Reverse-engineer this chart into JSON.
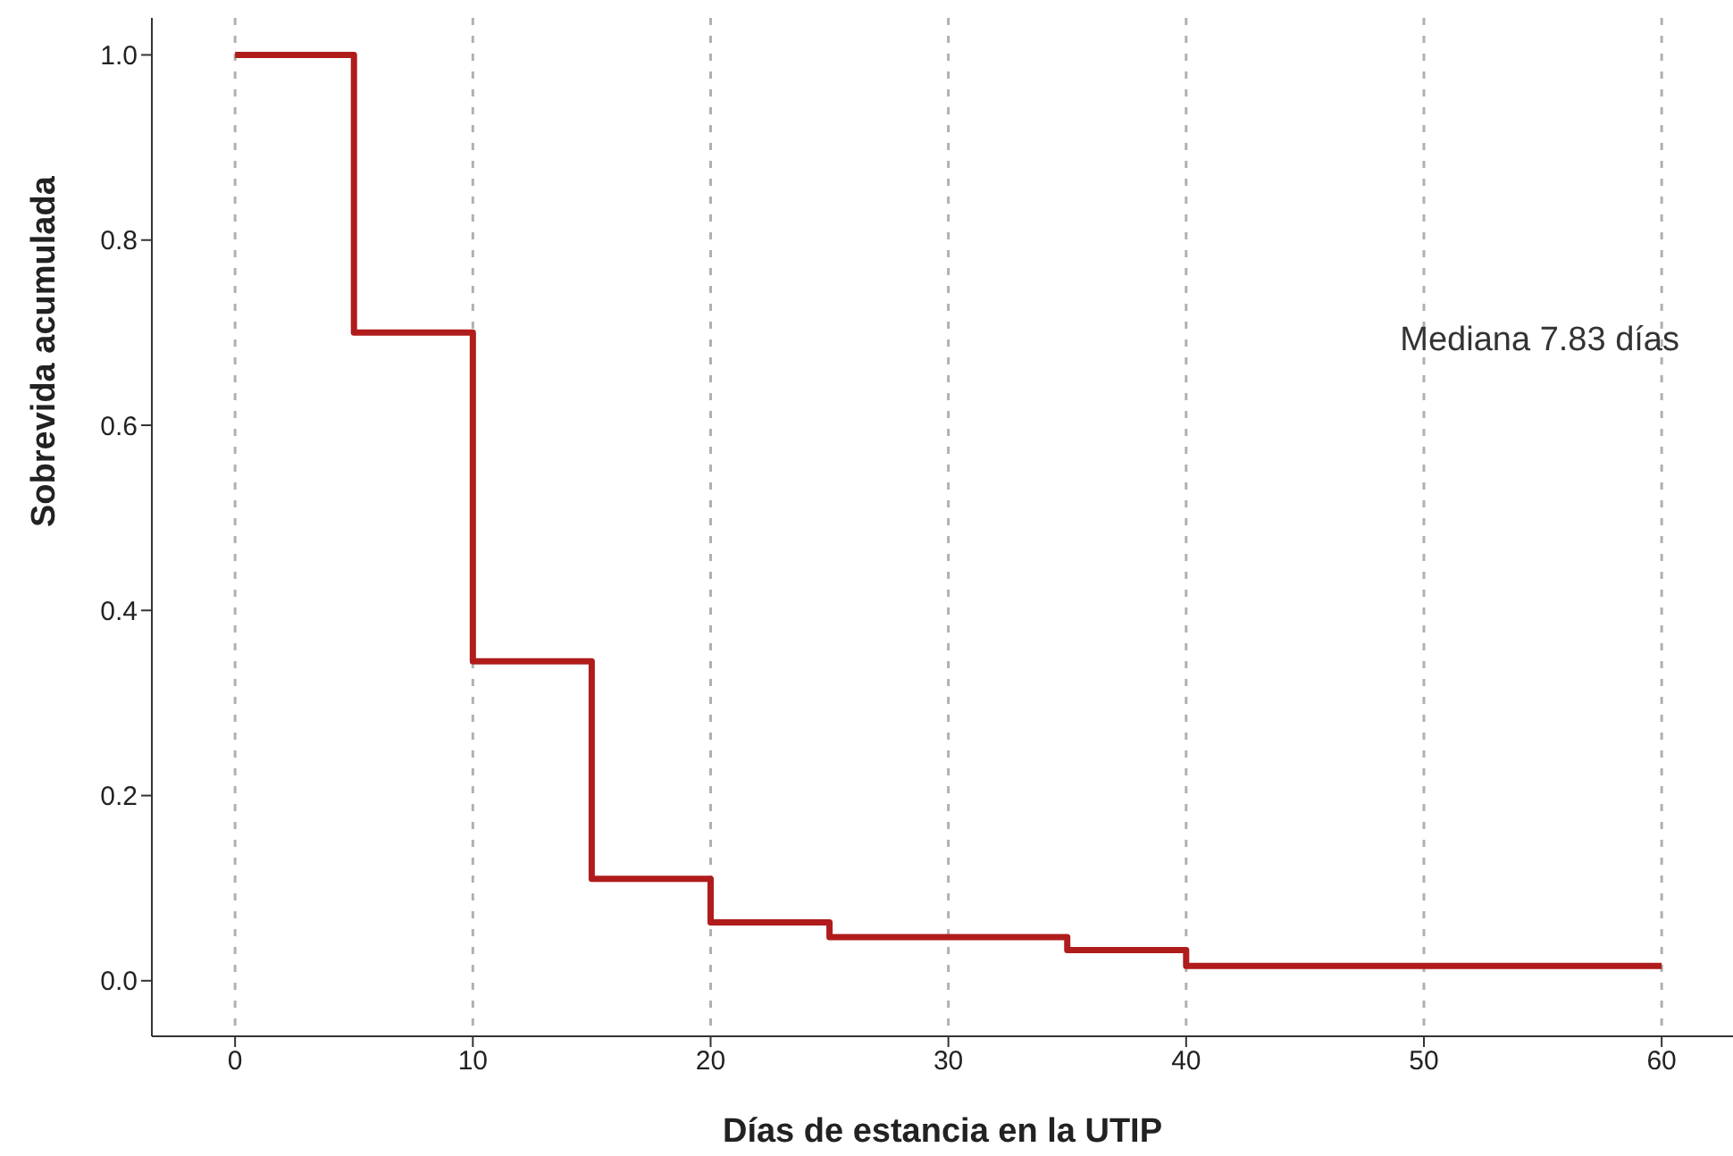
{
  "chart_data": {
    "type": "step",
    "xlabel": "Días de estancia en la UTIP",
    "ylabel": "Sobrevida acumulada",
    "x": [
      0,
      5,
      10,
      15,
      20,
      25,
      35,
      40,
      60
    ],
    "series": [
      {
        "color": "#b01c1c",
        "values": [
          1.0,
          0.7,
          0.345,
          0.11,
          0.063,
          0.047,
          0.033,
          0.016,
          0.016
        ]
      }
    ],
    "xlim": [
      -3.5,
      63
    ],
    "xticks": [
      0,
      10,
      20,
      30,
      40,
      50,
      60
    ],
    "ylim": [
      -0.06,
      1.04
    ],
    "yticks": [
      {
        "value": 0,
        "label": "0.0"
      },
      {
        "value": 0.2,
        "label": "0.2"
      },
      {
        "value": 0.4,
        "label": "0.4"
      },
      {
        "value": 0.6,
        "label": "0.6"
      },
      {
        "value": 0.8,
        "label": "0.8"
      },
      {
        "value": 1,
        "label": "1.0"
      }
    ],
    "grid": "x",
    "marker": "none",
    "line_style": "solid",
    "annotations": [
      "Mediana 7.83 días"
    ]
  }
}
